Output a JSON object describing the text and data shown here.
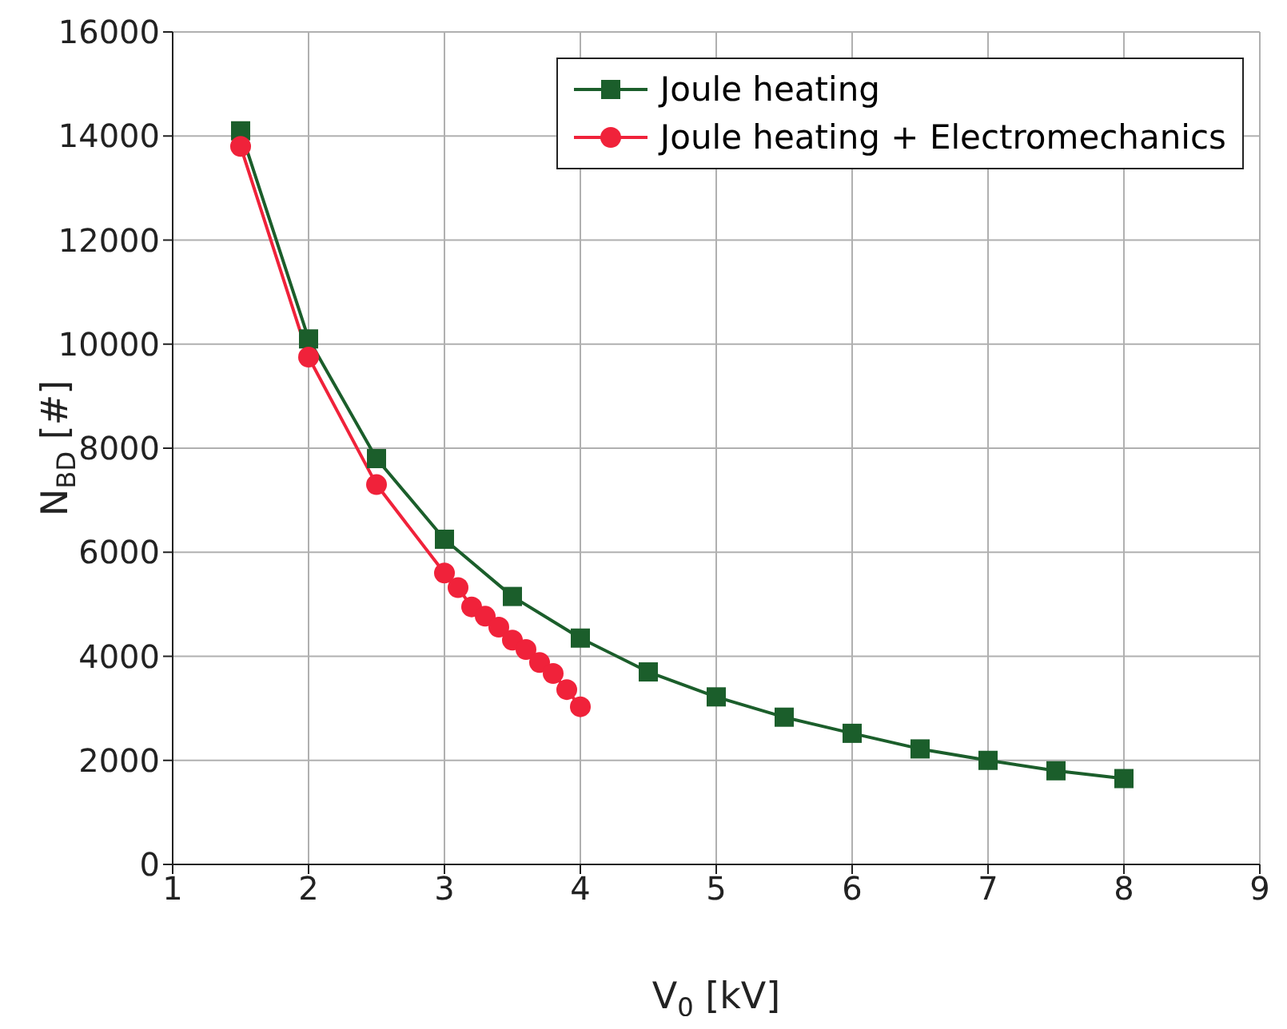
{
  "chart_data": {
    "type": "line",
    "xlabel": "V$_{0}$ [kV]",
    "ylabel": "N$_{BD}$ [#]",
    "xlim": [
      1,
      9
    ],
    "xticks": [
      1,
      2,
      3,
      4,
      5,
      6,
      7,
      8,
      9
    ],
    "ylim": [
      0,
      16000
    ],
    "yticks": [
      0,
      2000,
      4000,
      6000,
      8000,
      10000,
      12000,
      14000,
      16000
    ],
    "grid": true,
    "legend": "top right",
    "series": [
      {
        "name": "Joule heating",
        "color": "#1b5e2b",
        "marker": "square",
        "x": [
          1.5,
          2,
          2.5,
          3,
          3.5,
          4,
          4.5,
          5,
          5.5,
          6,
          6.5,
          7,
          7.5,
          8
        ],
        "values": [
          14100,
          10100,
          7800,
          6250,
          5150,
          4350,
          3700,
          3220,
          2830,
          2520,
          2220,
          2000,
          1800,
          1650
        ]
      },
      {
        "name": "Joule heating + Electromechanics",
        "color": "#f0223a",
        "marker": "circle",
        "x": [
          1.5,
          2,
          2.5,
          3,
          3.1,
          3.2,
          3.3,
          3.4,
          3.5,
          3.6,
          3.7,
          3.8,
          3.9,
          4
        ],
        "values": [
          13800,
          9750,
          7300,
          5600,
          5320,
          4950,
          4770,
          4560,
          4310,
          4130,
          3880,
          3670,
          3360,
          3030
        ]
      }
    ]
  }
}
